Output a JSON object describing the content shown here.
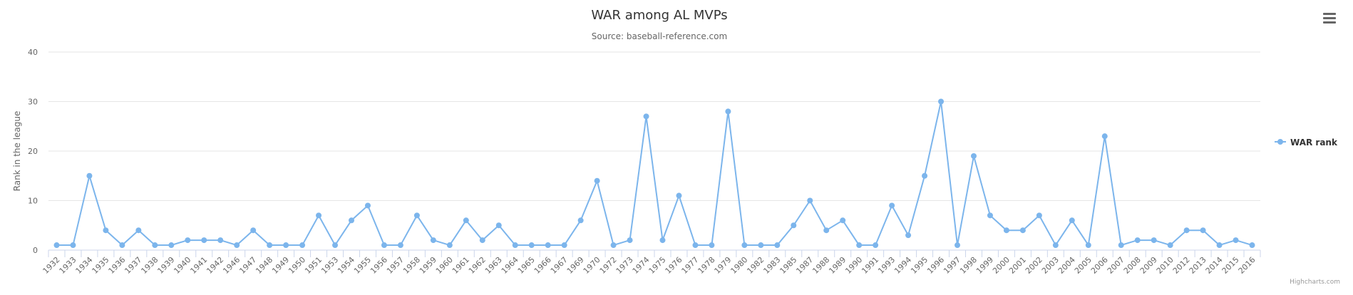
{
  "chart_data": {
    "type": "line",
    "title": "WAR among AL MVPs",
    "subtitle": "Source: baseball-reference.com",
    "ylabel": "Rank in the league",
    "xlabel": "",
    "ylim": [
      0,
      40
    ],
    "yticks": [
      0,
      10,
      20,
      30,
      40
    ],
    "grid": true,
    "legend_position": "right",
    "credits": "Highcharts.com",
    "colors": {
      "series": "#7cb5ec",
      "grid": "#e6e6e6",
      "axis": "#ccd6eb",
      "text": "#666666",
      "title": "#333333"
    },
    "categories": [
      "1932",
      "1933",
      "1934",
      "1935",
      "1936",
      "1937",
      "1938",
      "1939",
      "1940",
      "1941",
      "1942",
      "1946",
      "1947",
      "1948",
      "1949",
      "1950",
      "1951",
      "1953",
      "1954",
      "1955",
      "1956",
      "1957",
      "1958",
      "1959",
      "1960",
      "1961",
      "1962",
      "1963",
      "1964",
      "1965",
      "1966",
      "1967",
      "1969",
      "1970",
      "1972",
      "1973",
      "1974",
      "1975",
      "1976",
      "1977",
      "1978",
      "1979",
      "1980",
      "1982",
      "1983",
      "1985",
      "1987",
      "1988",
      "1989",
      "1990",
      "1991",
      "1993",
      "1994",
      "1995",
      "1996",
      "1997",
      "1998",
      "1999",
      "2000",
      "2001",
      "2002",
      "2003",
      "2004",
      "2005",
      "2006",
      "2007",
      "2008",
      "2009",
      "2010",
      "2012",
      "2013",
      "2014",
      "2015",
      "2016"
    ],
    "series": [
      {
        "name": "WAR rank",
        "values": [
          1,
          1,
          15,
          4,
          1,
          4,
          1,
          1,
          2,
          2,
          2,
          1,
          4,
          1,
          1,
          1,
          7,
          1,
          6,
          9,
          1,
          1,
          7,
          2,
          1,
          6,
          2,
          5,
          1,
          1,
          1,
          1,
          6,
          14,
          1,
          2,
          27,
          2,
          11,
          1,
          1,
          28,
          1,
          1,
          1,
          5,
          10,
          4,
          6,
          1,
          1,
          9,
          3,
          15,
          30,
          1,
          19,
          7,
          4,
          4,
          7,
          1,
          6,
          1,
          23,
          1,
          2,
          2,
          1,
          4,
          4,
          1,
          2,
          1
        ]
      }
    ]
  },
  "ui": {
    "menu_icon": "hamburger-menu-icon"
  }
}
